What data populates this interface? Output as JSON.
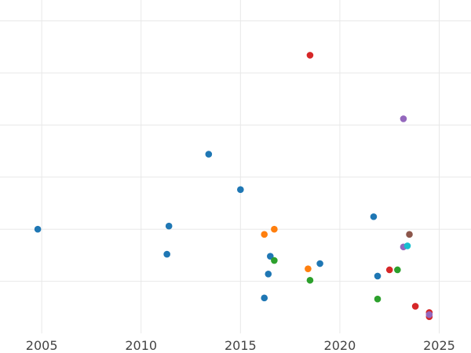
{
  "chart_data": {
    "type": "scatter",
    "title": "",
    "xlabel": "",
    "ylabel": "",
    "xlim": [
      2002.9,
      2026.6
    ],
    "ylim": [
      0,
      32
    ],
    "x_ticks": [
      2005,
      2010,
      2015,
      2020,
      2025
    ],
    "x_tick_labels": [
      "2005",
      "2010",
      "2015",
      "2020",
      "2025"
    ],
    "y_gridlines": [
      5,
      10,
      15,
      20,
      25,
      30
    ],
    "grid": true,
    "legend": "none",
    "series": [
      {
        "color": "#1f77b4",
        "points": [
          {
            "x": 2004.8,
            "y": 10.0
          },
          {
            "x": 2011.3,
            "y": 7.6
          },
          {
            "x": 2011.4,
            "y": 10.3
          },
          {
            "x": 2013.4,
            "y": 17.2
          },
          {
            "x": 2015.0,
            "y": 13.8
          },
          {
            "x": 2016.2,
            "y": 3.4
          },
          {
            "x": 2016.4,
            "y": 5.7
          },
          {
            "x": 2016.5,
            "y": 7.4
          },
          {
            "x": 2019.0,
            "y": 6.7
          },
          {
            "x": 2021.7,
            "y": 11.2
          },
          {
            "x": 2021.9,
            "y": 5.5
          }
        ]
      },
      {
        "color": "#ff7f0e",
        "points": [
          {
            "x": 2016.2,
            "y": 9.5
          },
          {
            "x": 2016.7,
            "y": 10.0
          },
          {
            "x": 2018.4,
            "y": 6.2
          }
        ]
      },
      {
        "color": "#2ca02c",
        "points": [
          {
            "x": 2016.7,
            "y": 7.0
          },
          {
            "x": 2018.5,
            "y": 5.1
          },
          {
            "x": 2021.9,
            "y": 3.3
          },
          {
            "x": 2022.9,
            "y": 6.1
          }
        ]
      },
      {
        "color": "#d62728",
        "points": [
          {
            "x": 2018.5,
            "y": 26.7
          },
          {
            "x": 2022.5,
            "y": 6.1
          },
          {
            "x": 2023.8,
            "y": 2.6
          },
          {
            "x": 2024.5,
            "y": 2.0
          },
          {
            "x": 2024.5,
            "y": 1.6
          }
        ]
      },
      {
        "color": "#9467bd",
        "points": [
          {
            "x": 2023.2,
            "y": 20.6
          },
          {
            "x": 2023.2,
            "y": 8.3
          },
          {
            "x": 2024.5,
            "y": 1.8
          }
        ]
      },
      {
        "color": "#8c564b",
        "points": [
          {
            "x": 2023.5,
            "y": 9.5
          }
        ]
      },
      {
        "color": "#17becf",
        "points": [
          {
            "x": 2023.4,
            "y": 8.4
          }
        ]
      }
    ]
  }
}
